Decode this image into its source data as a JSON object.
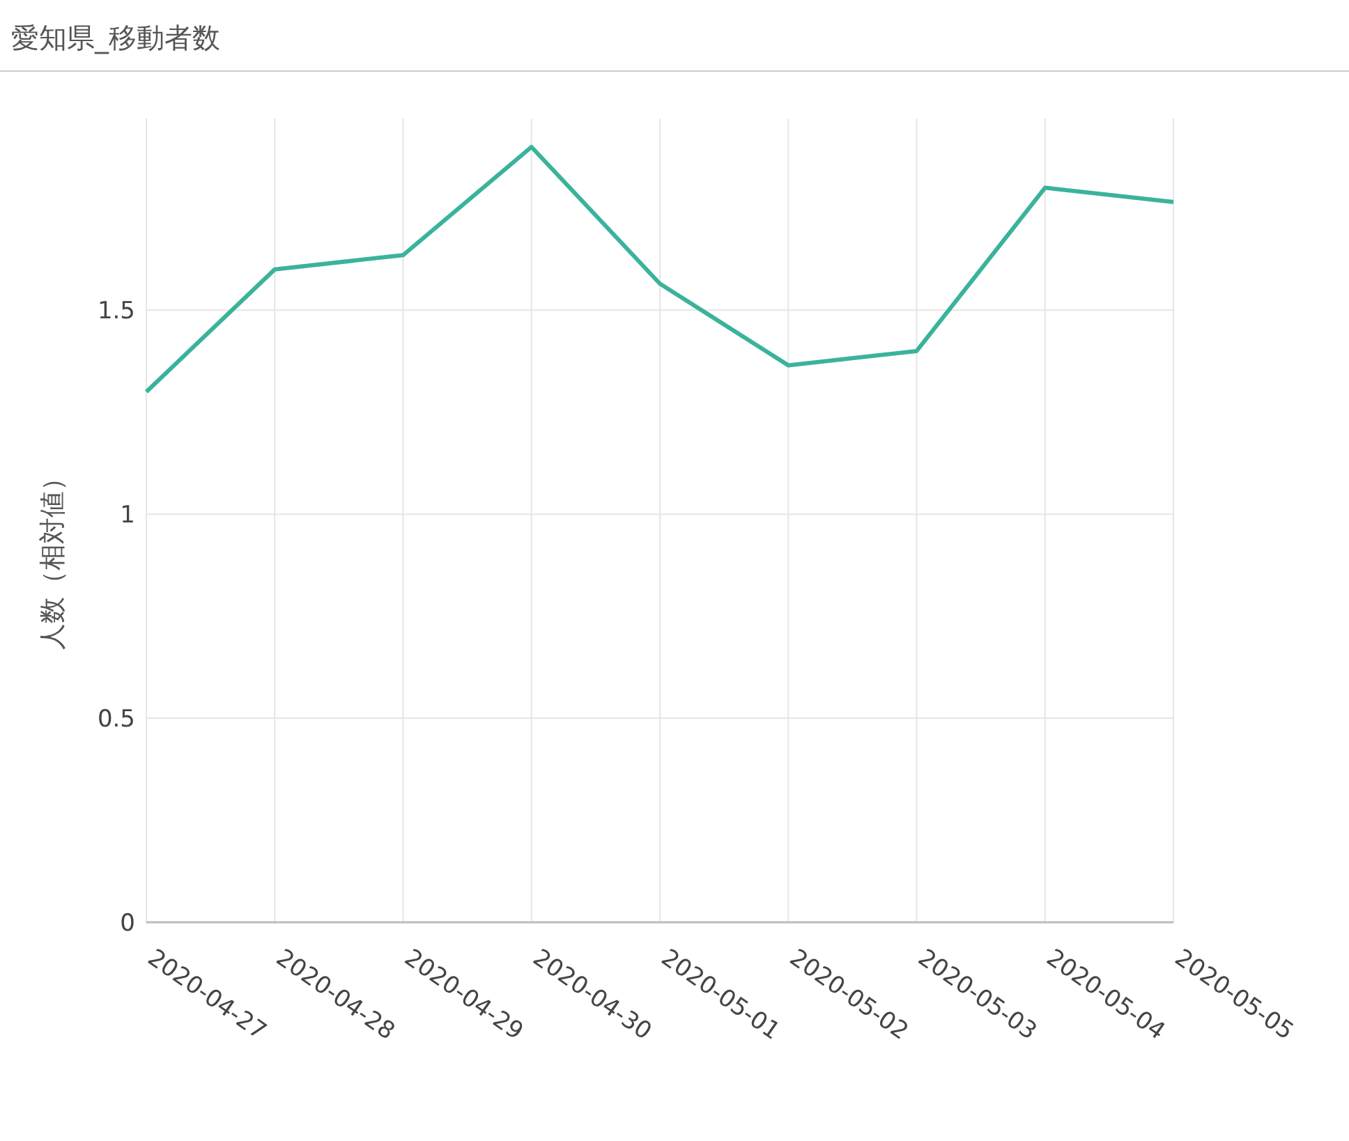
{
  "chart_data": {
    "type": "line",
    "title": "愛知県_移動者数",
    "ylabel": "人数（相対値）",
    "categories": [
      "2020-04-27",
      "2020-04-28",
      "2020-04-29",
      "2020-04-30",
      "2020-05-01",
      "2020-05-02",
      "2020-05-03",
      "2020-05-04",
      "2020-05-05"
    ],
    "series": [
      {
        "color": "#3bb39b",
        "values": [
          1.3,
          1.6,
          1.635,
          1.9,
          1.565,
          1.365,
          1.4,
          1.8,
          1.765
        ]
      }
    ],
    "ylim": [
      0,
      1.97
    ],
    "yticks": [
      0,
      0.5,
      1,
      1.5
    ],
    "grid": true,
    "marker": "none",
    "line_style": "solid"
  }
}
